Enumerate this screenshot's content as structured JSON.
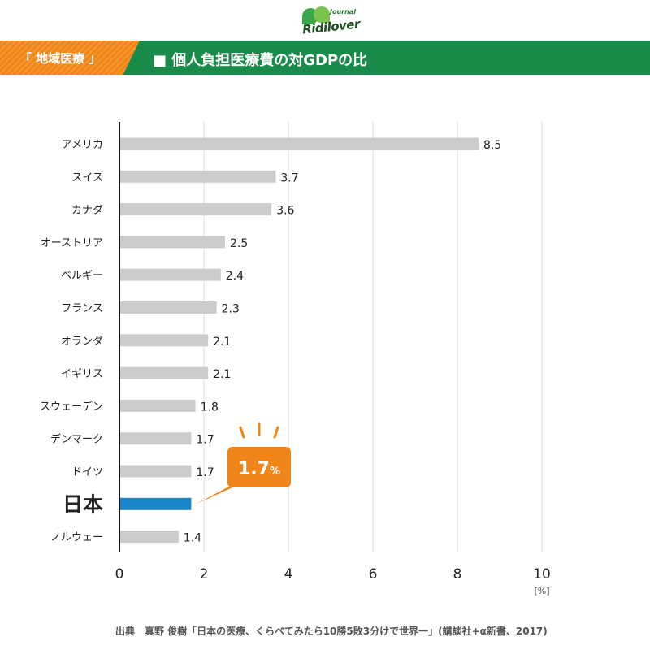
{
  "logo": {
    "brand": "Ridilover",
    "sub": "Journal"
  },
  "header": {
    "tag": "「 地域医療 」",
    "title": "■ 個人負担医療費の対GDPの比"
  },
  "callout": {
    "value": "1.7",
    "unit": "%"
  },
  "footer": {
    "source": "出典　真野 俊樹「日本の医療、くらべてみたら10勝5敗3分けで世界一」(講談社+α新書、2017)"
  },
  "colors": {
    "bar": "#cccccc",
    "highlight": "#1a85c8",
    "accent": "#f08519",
    "brand": "#1a8a4a",
    "grid": "#dddddd",
    "axis": "#111111"
  },
  "chart_data": {
    "type": "bar",
    "orientation": "horizontal",
    "categories": [
      "アメリカ",
      "スイス",
      "カナダ",
      "オーストリア",
      "ベルギー",
      "フランス",
      "オランダ",
      "イギリス",
      "スウェーデン",
      "デンマーク",
      "ドイツ",
      "日本",
      "ノルウェー"
    ],
    "values": [
      8.5,
      3.7,
      3.6,
      2.5,
      2.4,
      2.3,
      2.1,
      2.1,
      1.8,
      1.7,
      1.7,
      1.7,
      1.4
    ],
    "value_labels": [
      "8.5",
      "3.7",
      "3.6",
      "2.5",
      "2.4",
      "2.3",
      "2.1",
      "2.1",
      "1.8",
      "1.7",
      "1.7",
      "",
      "1.4"
    ],
    "highlight": "日本",
    "xlim": [
      0,
      10
    ],
    "xticks": [
      0,
      2,
      4,
      6,
      8,
      10
    ],
    "xunit": "[%]",
    "grid": true
  }
}
